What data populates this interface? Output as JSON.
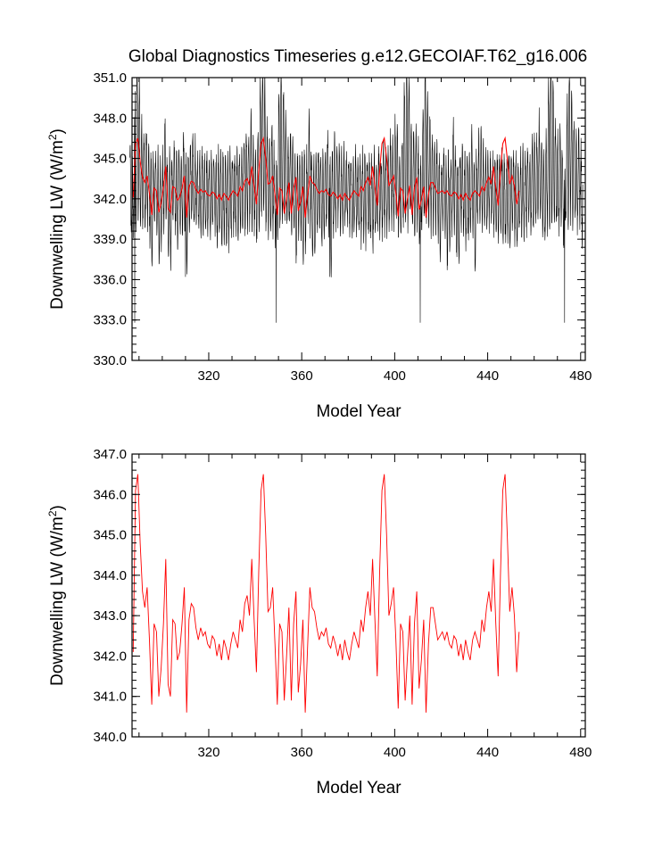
{
  "title": "Global Diagnostics Timeseries g.e12.GECOIAF.T62_g16.006",
  "colors": {
    "monthly": "#000000",
    "annual": "#ff0000"
  },
  "chart_data": [
    {
      "type": "line",
      "xlabel": "Model Year",
      "ylabel": {
        "main": "Downwelling LW (W/m",
        "sup": "2",
        "end": ")"
      },
      "xlim": [
        287,
        482
      ],
      "ylim": [
        330,
        351
      ],
      "xticks": [
        320,
        360,
        400,
        440,
        480
      ],
      "yticks": [
        330,
        333,
        336,
        339,
        342,
        345,
        348,
        351
      ],
      "ytick_labels": [
        "330.0",
        "333.0",
        "336.0",
        "339.0",
        "342.0",
        "345.0",
        "348.0",
        "351.0"
      ],
      "series_description": "monthly values (black) with annual mean overlay (red)"
    },
    {
      "type": "line",
      "xlabel": "Model Year",
      "ylabel": {
        "main": "Downwelling LW (W/m",
        "sup": "2",
        "end": ")"
      },
      "xlim": [
        287,
        482
      ],
      "ylim": [
        340,
        347
      ],
      "xticks": [
        320,
        360,
        400,
        440,
        480
      ],
      "yticks": [
        340,
        341,
        342,
        343,
        344,
        345,
        346,
        347
      ],
      "ytick_labels": [
        "340.0",
        "341.0",
        "342.0",
        "343.0",
        "344.0",
        "345.0",
        "346.0",
        "347.0"
      ]
    }
  ],
  "cycle_annual": [
    [
      0,
      342.1
    ],
    [
      1,
      346.1
    ],
    [
      2,
      346.5
    ],
    [
      3,
      344.8
    ],
    [
      4,
      343.6
    ],
    [
      5,
      343.2
    ],
    [
      6,
      343.7
    ],
    [
      7,
      342.4
    ],
    [
      8,
      340.8
    ],
    [
      9,
      342.8
    ],
    [
      10,
      342.6
    ],
    [
      11,
      341.0
    ],
    [
      12,
      341.7
    ],
    [
      13,
      342.8
    ],
    [
      14,
      344.4
    ],
    [
      15,
      341.3
    ],
    [
      16,
      341.0
    ],
    [
      17,
      342.9
    ],
    [
      18,
      342.8
    ],
    [
      19,
      341.9
    ],
    [
      20,
      342.1
    ],
    [
      21,
      342.8
    ],
    [
      22,
      343.7
    ],
    [
      23,
      340.6
    ],
    [
      24,
      342.9
    ],
    [
      25,
      343.3
    ],
    [
      26,
      343.2
    ],
    [
      27,
      342.7
    ],
    [
      28,
      342.4
    ],
    [
      29,
      342.7
    ],
    [
      30,
      342.5
    ],
    [
      31,
      342.6
    ],
    [
      32,
      342.3
    ],
    [
      33,
      342.2
    ],
    [
      34,
      342.5
    ],
    [
      35,
      342.4
    ],
    [
      36,
      342.0
    ],
    [
      37,
      342.3
    ],
    [
      38,
      341.9
    ],
    [
      39,
      342.4
    ],
    [
      40,
      342.2
    ],
    [
      41,
      341.9
    ],
    [
      42,
      342.3
    ],
    [
      43,
      342.6
    ],
    [
      44,
      342.4
    ],
    [
      45,
      342.2
    ],
    [
      46,
      342.9
    ],
    [
      47,
      342.6
    ],
    [
      48,
      343.3
    ],
    [
      49,
      343.5
    ],
    [
      50,
      343.0
    ],
    [
      51,
      344.4
    ],
    [
      52,
      342.9
    ],
    [
      53,
      341.6
    ],
    [
      54,
      344.1
    ],
    [
      55,
      346.1
    ],
    [
      56,
      346.5
    ],
    [
      57,
      345.0
    ],
    [
      58,
      343.1
    ],
    [
      59,
      343.2
    ],
    [
      60,
      343.7
    ],
    [
      61,
      342.3
    ],
    [
      62,
      340.8
    ],
    [
      63,
      342.8
    ],
    [
      64,
      342.6
    ],
    [
      65,
      340.9
    ],
    [
      66,
      342.0
    ],
    [
      67,
      343.2
    ],
    [
      68,
      340.9
    ],
    [
      69,
      342.8
    ],
    [
      70,
      343.6
    ],
    [
      71,
      341.1
    ],
    [
      72,
      341.8
    ],
    [
      73,
      342.9
    ],
    [
      74,
      340.6
    ],
    [
      75,
      342.2
    ],
    [
      76,
      343.7
    ],
    [
      77,
      343.2
    ],
    [
      78,
      343.1
    ],
    [
      79,
      342.7
    ],
    [
      80,
      342.4
    ],
    [
      81,
      342.6
    ],
    [
      82,
      342.5
    ],
    [
      83,
      342.7
    ],
    [
      84,
      342.3
    ],
    [
      85,
      342.2
    ],
    [
      86,
      342.5
    ],
    [
      87,
      342.3
    ],
    [
      88,
      342.0
    ],
    [
      89,
      342.3
    ],
    [
      90,
      341.9
    ],
    [
      91,
      342.4
    ],
    [
      92,
      342.1
    ],
    [
      93,
      341.9
    ],
    [
      94,
      342.3
    ],
    [
      95,
      342.6
    ],
    [
      96,
      342.4
    ],
    [
      97,
      342.2
    ],
    [
      98,
      342.9
    ],
    [
      99,
      342.6
    ],
    [
      100,
      343.2
    ],
    [
      101,
      343.6
    ],
    [
      102,
      343.0
    ],
    [
      103,
      344.4
    ],
    [
      104,
      342.9
    ],
    [
      105,
      341.5
    ],
    [
      106,
      344.0
    ],
    [
      107,
      346.1
    ],
    [
      108,
      346.5
    ],
    [
      109,
      345.0
    ],
    [
      110,
      343.0
    ],
    [
      111,
      343.3
    ],
    [
      112,
      343.7
    ],
    [
      113,
      342.4
    ],
    [
      114,
      340.7
    ],
    [
      115,
      342.8
    ],
    [
      116,
      342.6
    ],
    [
      117,
      340.9
    ],
    [
      118,
      342.0
    ],
    [
      119,
      343.0
    ],
    [
      120,
      340.8
    ],
    [
      121,
      342.8
    ],
    [
      122,
      343.6
    ],
    [
      123,
      341.2
    ],
    [
      124,
      341.9
    ],
    [
      125,
      342.9
    ],
    [
      126,
      340.6
    ],
    [
      127,
      342.3
    ],
    [
      128,
      343.2
    ],
    [
      129,
      343.2
    ],
    [
      130,
      342.8
    ],
    [
      131,
      342.4
    ],
    [
      132,
      342.5
    ],
    [
      133,
      342.6
    ],
    [
      134,
      342.4
    ],
    [
      135,
      342.6
    ],
    [
      136,
      342.3
    ],
    [
      137,
      342.2
    ],
    [
      138,
      342.5
    ],
    [
      139,
      342.4
    ],
    [
      140,
      342.0
    ],
    [
      141,
      342.3
    ],
    [
      142,
      341.9
    ],
    [
      143,
      342.4
    ],
    [
      144,
      342.1
    ],
    [
      145,
      341.9
    ],
    [
      146,
      342.4
    ],
    [
      147,
      342.6
    ],
    [
      148,
      342.4
    ],
    [
      149,
      342.2
    ],
    [
      150,
      342.9
    ],
    [
      151,
      342.6
    ],
    [
      152,
      343.2
    ],
    [
      153,
      343.6
    ],
    [
      154,
      343.1
    ],
    [
      155,
      344.4
    ],
    [
      156,
      342.8
    ],
    [
      157,
      341.5
    ],
    [
      158,
      344.0
    ],
    [
      159,
      346.1
    ],
    [
      160,
      346.5
    ],
    [
      161,
      344.9
    ],
    [
      162,
      343.1
    ],
    [
      163,
      343.7
    ],
    [
      164,
      343.0
    ],
    [
      165,
      341.6
    ],
    [
      166,
      342.6
    ]
  ]
}
